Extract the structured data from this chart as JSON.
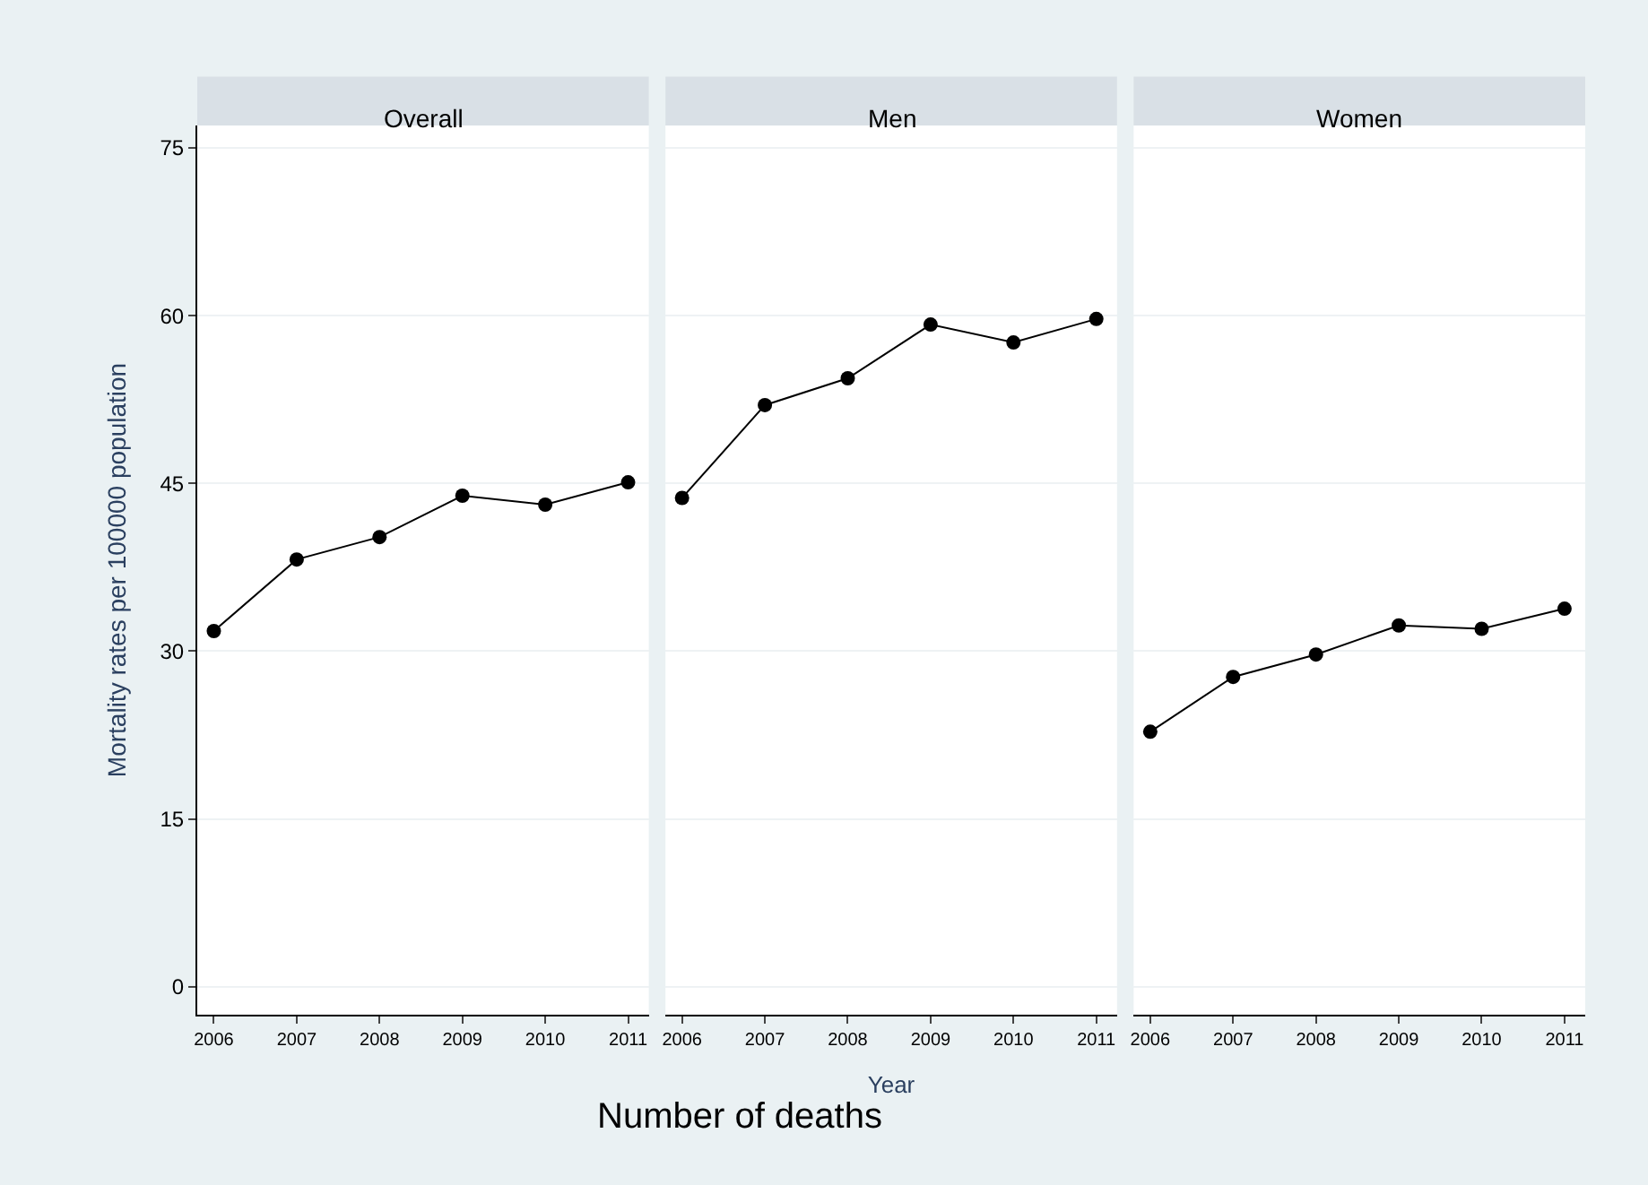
{
  "chart_data": [
    {
      "type": "line",
      "title": "Overall",
      "ylabel": "Mortality rates per 100000 population",
      "annotations": [
        "Number of deaths"
      ],
      "x": [
        2006,
        2007,
        2008,
        2009,
        2010,
        2011
      ],
      "series": [
        {
          "color": "#000000",
          "values": [
            31.8,
            38.2,
            40.2,
            43.9,
            43.1,
            45.1
          ]
        }
      ],
      "xlim": [
        2005.8,
        2011.25
      ],
      "xticks": [
        2006,
        2007,
        2008,
        2009,
        2010,
        2011
      ],
      "ylim": [
        -2.5,
        77
      ],
      "yticks": [
        0,
        15,
        30,
        45,
        60,
        75
      ],
      "grid": "y",
      "marker": "circle",
      "line_style": "solid"
    },
    {
      "type": "line",
      "title": "Men",
      "xlabel": "Year",
      "x": [
        2006,
        2007,
        2008,
        2009,
        2010,
        2011
      ],
      "series": [
        {
          "color": "#000000",
          "values": [
            43.7,
            52.0,
            54.4,
            59.2,
            57.6,
            59.7
          ]
        }
      ],
      "xlim": [
        2005.8,
        2011.25
      ],
      "xticks": [
        2006,
        2007,
        2008,
        2009,
        2010,
        2011
      ],
      "ylim": [
        -2.5,
        77
      ],
      "yticks": [
        0,
        15,
        30,
        45,
        60,
        75
      ],
      "grid": "y",
      "marker": "circle",
      "line_style": "solid",
      "tick_labels": "x"
    },
    {
      "type": "line",
      "title": "Women",
      "x": [
        2006,
        2007,
        2008,
        2009,
        2010,
        2011
      ],
      "series": [
        {
          "color": "#000000",
          "values": [
            22.8,
            27.7,
            29.7,
            32.3,
            32.0,
            33.8
          ]
        }
      ],
      "xlim": [
        2005.8,
        2011.25
      ],
      "xticks": [
        2006,
        2007,
        2008,
        2009,
        2010,
        2011
      ],
      "ylim": [
        -2.5,
        77
      ],
      "yticks": [
        0,
        15,
        30,
        45,
        60,
        75
      ],
      "grid": "y",
      "marker": "circle",
      "line_style": "solid",
      "tick_labels": "x"
    }
  ]
}
